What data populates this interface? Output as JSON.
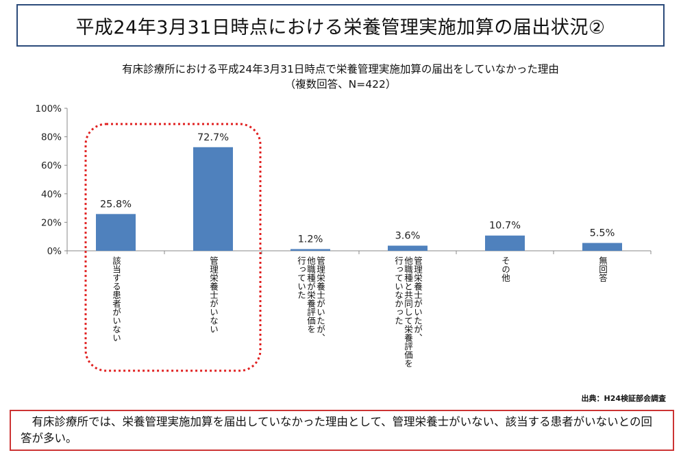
{
  "header": {
    "title": "平成24年3月31日時点における栄養管理実施加算の届出状況②"
  },
  "chart_data": {
    "type": "bar",
    "title": "有床診療所における平成24年3月31日時点で栄養管理実施加算の届出をしていなかった理由",
    "subtitle": "（複数回答、N=422）",
    "categories": [
      "該当する患者がいない",
      "管理栄養士がいない",
      "管理栄養士がいたが、\n他職種が栄養評価を\n行っていた",
      "管理栄養士がいたが、\n他職種と共同して栄養評価を\n行っていなかった",
      "その他",
      "無回答"
    ],
    "values": [
      25.8,
      72.7,
      1.2,
      3.6,
      10.7,
      5.5
    ],
    "value_labels": [
      "25.8%",
      "72.7%",
      "1.2%",
      "3.6%",
      "10.7%",
      "5.5%"
    ],
    "yticks": [
      "0%",
      "20%",
      "40%",
      "60%",
      "80%",
      "100%"
    ],
    "ylim": [
      0,
      100
    ],
    "bar_color": "#4f81bd",
    "highlight_color": "#e02020"
  },
  "footer": {
    "source": "出典：H24検証部会調査",
    "summary": "有床診療所では、栄養管理実施加算を届出していなかった理由として、管理栄養士がいない、該当する患者がいないとの回答が多い。"
  }
}
